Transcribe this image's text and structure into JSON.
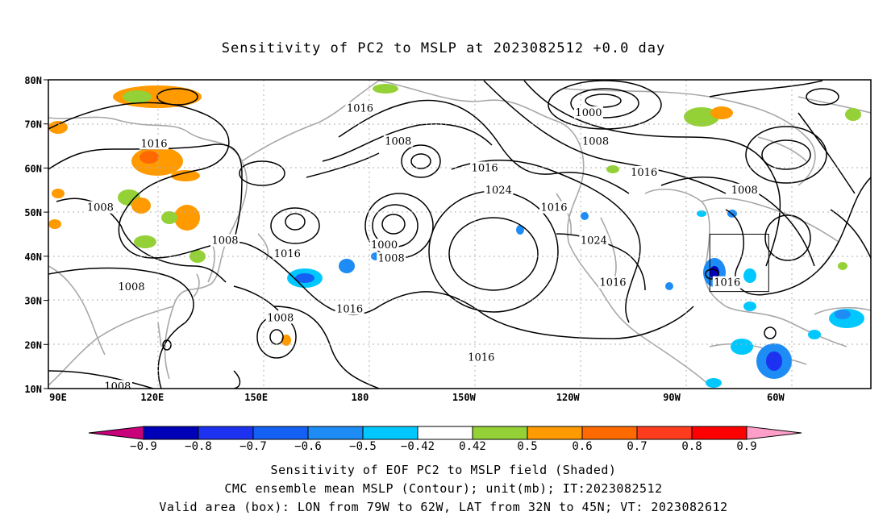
{
  "title": "Sensitivity of PC2 to MSLP at 2023082512 +0.0 day",
  "axes": {
    "lat_labels": [
      "10N",
      "20N",
      "30N",
      "40N",
      "50N",
      "60N",
      "70N",
      "80N"
    ],
    "lon_labels": [
      "90E",
      "120E",
      "150E",
      "180",
      "150W",
      "120W",
      "90W",
      "60W"
    ]
  },
  "contour_labels": [
    {
      "text": "1016",
      "lon": 180,
      "lat": 73.5
    },
    {
      "text": "1008",
      "lon": 191,
      "lat": 66
    },
    {
      "text": "1016",
      "lon": 120.5,
      "lat": 65.5
    },
    {
      "text": "1000",
      "lon": 246,
      "lat": 72.5
    },
    {
      "text": "1008",
      "lon": 248,
      "lat": 66
    },
    {
      "text": "1016",
      "lon": 216,
      "lat": 60
    },
    {
      "text": "1024",
      "lon": 220,
      "lat": 55
    },
    {
      "text": "1016",
      "lon": 236,
      "lat": 51
    },
    {
      "text": "1016",
      "lon": 262,
      "lat": 59
    },
    {
      "text": "1008",
      "lon": 291,
      "lat": 55
    },
    {
      "text": "1008",
      "lon": 105,
      "lat": 51
    },
    {
      "text": "1008",
      "lon": 141,
      "lat": 43.5
    },
    {
      "text": "1016",
      "lon": 159,
      "lat": 40.5
    },
    {
      "text": "1000",
      "lon": 187,
      "lat": 42.5
    },
    {
      "text": "1008",
      "lon": 189,
      "lat": 39.5
    },
    {
      "text": "1024",
      "lon": 247.5,
      "lat": 43.5
    },
    {
      "text": "1016",
      "lon": 253,
      "lat": 34
    },
    {
      "text": "1016",
      "lon": 286,
      "lat": 34
    },
    {
      "text": "1016",
      "lon": 177,
      "lat": 28
    },
    {
      "text": "1008",
      "lon": 114,
      "lat": 33
    },
    {
      "text": "1008",
      "lon": 157,
      "lat": 26
    },
    {
      "text": "1016",
      "lon": 215,
      "lat": 17
    },
    {
      "text": "1008",
      "lon": 110,
      "lat": 10.5
    }
  ],
  "legend": {
    "ticks": [
      "−0.9",
      "−0.8",
      "−0.7",
      "−0.6",
      "−0.5",
      "−0.42",
      "0.42",
      "0.5",
      "0.6",
      "0.7",
      "0.8",
      "0.9"
    ],
    "colors": [
      "#0000b8",
      "#1c32f0",
      "#1460f5",
      "#1e8cf5",
      "#00c8ff",
      "#ffffff",
      "#94d136",
      "#ff9a00",
      "#ff6a00",
      "#ff3c1e",
      "#ff0000"
    ],
    "low_color": "#c8007a",
    "high_color": "#ff9ec8"
  },
  "valid_box": {
    "lon_min": -79,
    "lon_max": -62,
    "lat_min": 32,
    "lat_max": 45
  },
  "caption": {
    "line1": "Sensitivity of EOF PC2 to MSLP field (Shaded)",
    "line2": "CMC ensemble mean MSLP (Contour); unit(mb); IT:2023082512",
    "line3": "Valid area (box): LON from 79W to 62W, LAT from 32N to 45N; VT: 2023082612"
  }
}
